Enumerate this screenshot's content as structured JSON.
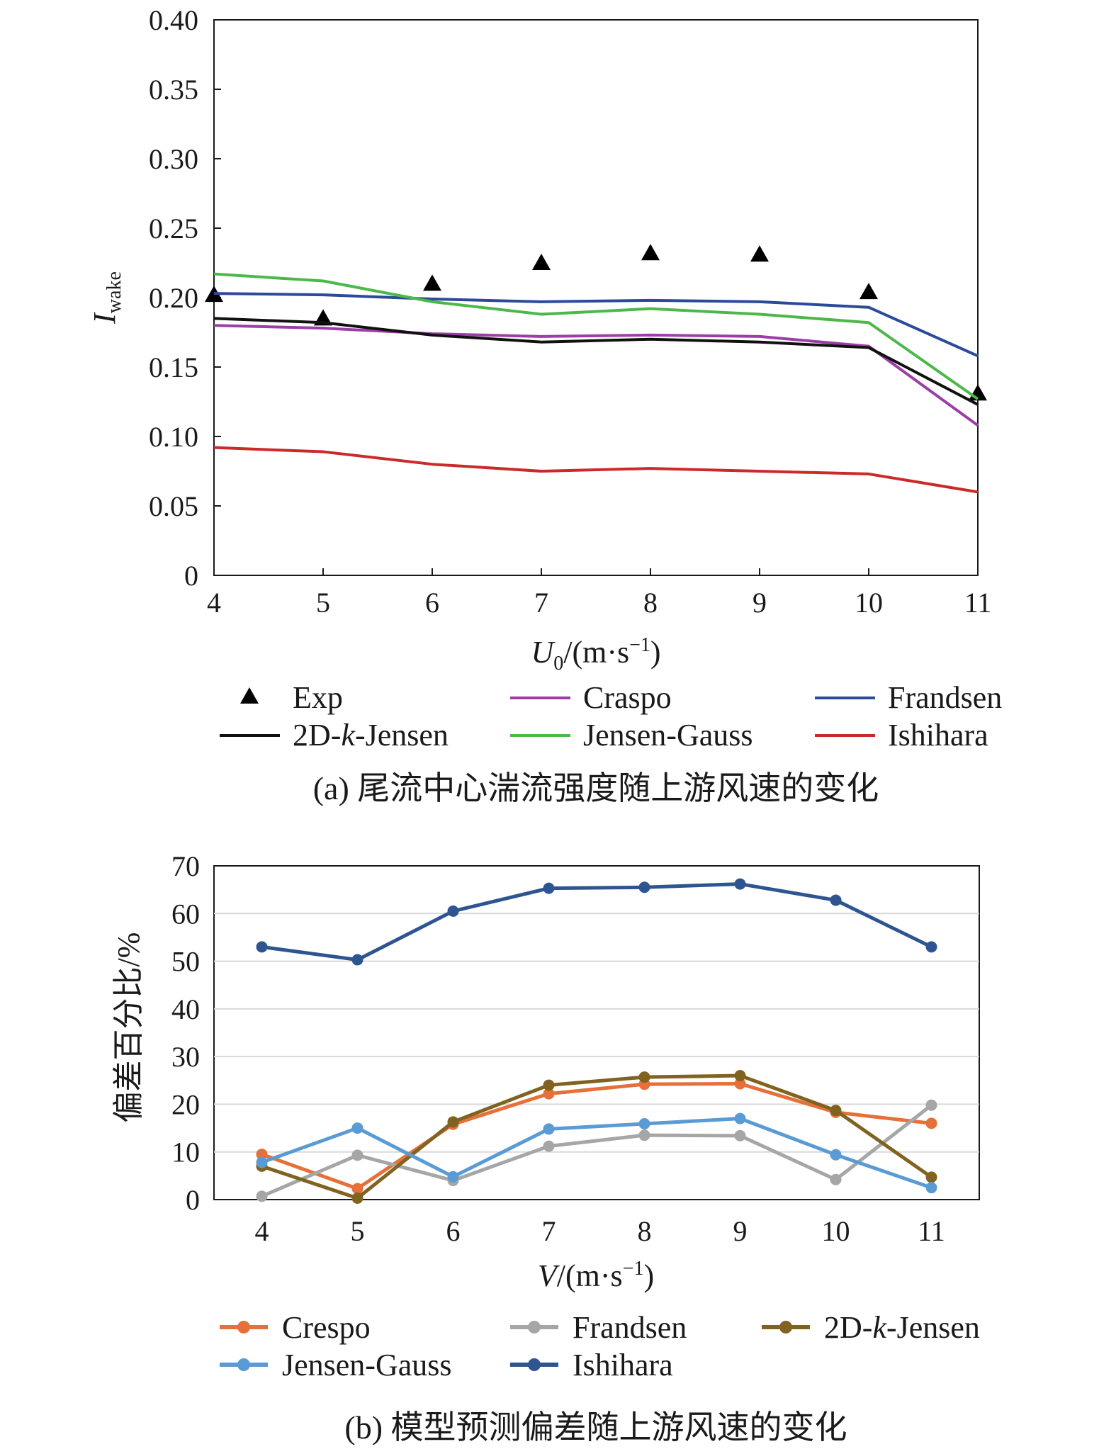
{
  "chart_data": [
    {
      "type": "line",
      "caption": "(a) 尾流中心湍流强度随上游风速的变化",
      "ylabel_main": "I",
      "ylabel_sub": "wake",
      "xlabel_main": "U",
      "xlabel_sub": "0",
      "xlabel_unit": "/(m·s",
      "xlabel_sup": "−1",
      "xlabel_close": ")",
      "x": [
        4,
        5,
        6,
        7,
        8,
        9,
        10,
        11
      ],
      "xlim": [
        4,
        11
      ],
      "ylim": [
        0,
        0.4
      ],
      "yticks": [
        "0",
        "0.05",
        "0.10",
        "0.15",
        "0.20",
        "0.25",
        "0.30",
        "0.35",
        "0.40"
      ],
      "grid": false,
      "legend_position": "bottom",
      "series": [
        {
          "name": "Exp",
          "marker": "triangle",
          "color": "#000000",
          "values": [
            0.202,
            0.185,
            0.21,
            0.225,
            0.232,
            0.231,
            0.204,
            0.131
          ]
        },
        {
          "name": "Craspo",
          "color": "#9b3fa7",
          "values": [
            0.18,
            0.178,
            0.174,
            0.172,
            0.173,
            0.172,
            0.165,
            0.108
          ]
        },
        {
          "name": "Frandsen",
          "color": "#2c4a9a",
          "values": [
            0.203,
            0.202,
            0.199,
            0.197,
            0.198,
            0.197,
            0.193,
            0.158
          ]
        },
        {
          "name": "2D-k-Jensen",
          "color": "#111111",
          "values": [
            0.185,
            0.182,
            0.173,
            0.168,
            0.17,
            0.168,
            0.164,
            0.123
          ]
        },
        {
          "name": "Jensen-Gauss",
          "color": "#4cb84a",
          "values": [
            0.217,
            0.212,
            0.197,
            0.188,
            0.192,
            0.188,
            0.182,
            0.127
          ]
        },
        {
          "name": "Ishihara",
          "color": "#cc2a2a",
          "values": [
            0.092,
            0.089,
            0.08,
            0.075,
            0.077,
            0.075,
            0.073,
            0.06
          ]
        }
      ]
    },
    {
      "type": "line",
      "caption": "(b) 模型预测偏差随上游风速的变化",
      "ylabel": "偏差百分比/%",
      "xlabel_main": "V",
      "xlabel_unit": "/(m·s",
      "xlabel_sup": "−1",
      "xlabel_close": ")",
      "categories": [
        "4",
        "5",
        "6",
        "7",
        "8",
        "9",
        "10",
        "11"
      ],
      "ylim": [
        0,
        70
      ],
      "yticks": [
        "0",
        "10",
        "20",
        "30",
        "40",
        "50",
        "60",
        "70"
      ],
      "grid": true,
      "legend_position": "bottom",
      "series": [
        {
          "name": "Crespo",
          "color": "#e5703a",
          "values": [
            9.5,
            2.3,
            15.8,
            22.2,
            24.2,
            24.3,
            18.3,
            16.0
          ]
        },
        {
          "name": "Frandsen",
          "color": "#a6a6a6",
          "values": [
            0.7,
            9.3,
            4.0,
            11.2,
            13.5,
            13.4,
            4.2,
            19.8
          ]
        },
        {
          "name": "2D-k-Jensen",
          "color": "#806320",
          "values": [
            7.0,
            0.3,
            16.3,
            24.0,
            25.7,
            26.0,
            18.7,
            4.7
          ]
        },
        {
          "name": "Jensen-Gauss",
          "color": "#5b9bd5",
          "values": [
            7.8,
            15.0,
            4.8,
            14.8,
            15.9,
            17.0,
            9.4,
            2.5
          ]
        },
        {
          "name": "Ishihara",
          "color": "#2e5591",
          "values": [
            53.0,
            50.3,
            60.5,
            65.3,
            65.5,
            66.2,
            62.8,
            53.0
          ]
        }
      ]
    }
  ]
}
